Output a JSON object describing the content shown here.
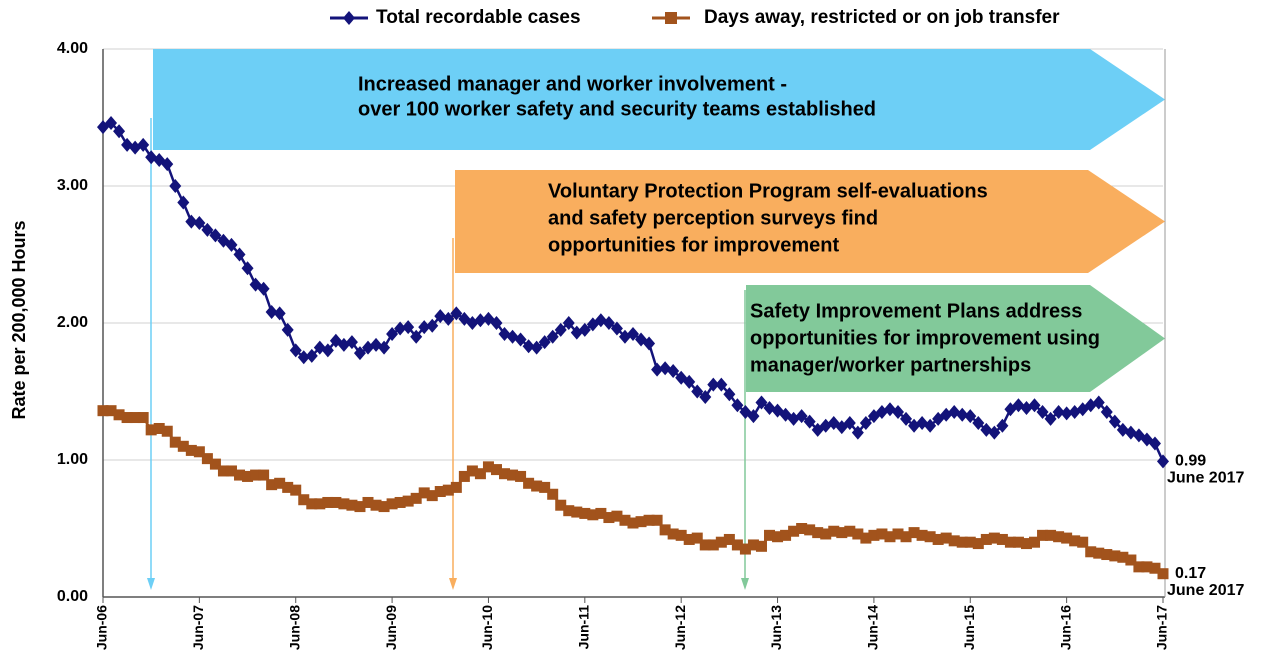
{
  "chart_data": {
    "type": "line",
    "y_label": "Rate per 200,000 Hours",
    "categories": [
      "Jun-06",
      null,
      null,
      null,
      null,
      null,
      null,
      null,
      null,
      null,
      null,
      null,
      "Jun-07",
      null,
      null,
      null,
      null,
      null,
      null,
      null,
      null,
      null,
      null,
      null,
      "Jun-08",
      null,
      null,
      null,
      null,
      null,
      null,
      null,
      null,
      null,
      null,
      null,
      "Jun-09",
      null,
      null,
      null,
      null,
      null,
      null,
      null,
      null,
      null,
      null,
      null,
      "Jun-10",
      null,
      null,
      null,
      null,
      null,
      null,
      null,
      null,
      null,
      null,
      null,
      "Jun-11",
      null,
      null,
      null,
      null,
      null,
      null,
      null,
      null,
      null,
      null,
      null,
      "Jun-12",
      null,
      null,
      null,
      null,
      null,
      null,
      null,
      null,
      null,
      null,
      null,
      "Jun-13",
      null,
      null,
      null,
      null,
      null,
      null,
      null,
      null,
      null,
      null,
      null,
      "Jun-14",
      null,
      null,
      null,
      null,
      null,
      null,
      null,
      null,
      null,
      null,
      null,
      "Jun-15",
      null,
      null,
      null,
      null,
      null,
      null,
      null,
      null,
      null,
      null,
      null,
      "Jun-16",
      null,
      null,
      null,
      null,
      null,
      null,
      null,
      null,
      null,
      null,
      null,
      "Jun-17"
    ],
    "series": [
      {
        "name": "Total recordable cases",
        "color": "#13137a",
        "marker": "diamond",
        "end_label": "June 2017",
        "values": [
          3.43,
          3.46,
          3.4,
          3.3,
          3.28,
          3.3,
          3.21,
          3.19,
          3.16,
          3.0,
          2.88,
          2.74,
          2.73,
          2.68,
          2.64,
          2.6,
          2.57,
          2.5,
          2.4,
          2.28,
          2.25,
          2.08,
          2.07,
          1.95,
          1.8,
          1.75,
          1.76,
          1.82,
          1.8,
          1.87,
          1.84,
          1.86,
          1.78,
          1.82,
          1.84,
          1.82,
          1.92,
          1.96,
          1.97,
          1.9,
          1.97,
          1.98,
          2.05,
          2.03,
          2.07,
          2.03,
          2.0,
          2.02,
          2.03,
          2.0,
          1.92,
          1.9,
          1.88,
          1.83,
          1.82,
          1.86,
          1.9,
          1.95,
          2.0,
          1.93,
          1.95,
          1.99,
          2.02,
          2.0,
          1.96,
          1.9,
          1.92,
          1.88,
          1.85,
          1.66,
          1.67,
          1.65,
          1.6,
          1.57,
          1.5,
          1.46,
          1.55,
          1.55,
          1.48,
          1.4,
          1.35,
          1.32,
          1.42,
          1.38,
          1.36,
          1.33,
          1.3,
          1.32,
          1.28,
          1.22,
          1.25,
          1.27,
          1.24,
          1.27,
          1.2,
          1.27,
          1.32,
          1.35,
          1.37,
          1.35,
          1.3,
          1.25,
          1.27,
          1.25,
          1.3,
          1.33,
          1.35,
          1.33,
          1.32,
          1.27,
          1.22,
          1.2,
          1.25,
          1.37,
          1.4,
          1.38,
          1.4,
          1.35,
          1.3,
          1.35,
          1.34,
          1.35,
          1.37,
          1.4,
          1.42,
          1.35,
          1.28,
          1.22,
          1.2,
          1.18,
          1.15,
          1.12,
          0.99
        ]
      },
      {
        "name": "Days away, restricted or on job transfer",
        "color": "#a2531c",
        "marker": "square",
        "end_label": "June 2017",
        "values": [
          1.36,
          1.36,
          1.33,
          1.31,
          1.31,
          1.31,
          1.22,
          1.23,
          1.21,
          1.13,
          1.1,
          1.07,
          1.06,
          1.01,
          0.97,
          0.92,
          0.92,
          0.89,
          0.88,
          0.89,
          0.89,
          0.82,
          0.83,
          0.8,
          0.78,
          0.71,
          0.68,
          0.68,
          0.69,
          0.69,
          0.68,
          0.67,
          0.66,
          0.69,
          0.67,
          0.66,
          0.68,
          0.69,
          0.7,
          0.72,
          0.76,
          0.74,
          0.77,
          0.78,
          0.8,
          0.88,
          0.92,
          0.9,
          0.95,
          0.93,
          0.9,
          0.89,
          0.88,
          0.83,
          0.81,
          0.8,
          0.75,
          0.67,
          0.63,
          0.62,
          0.61,
          0.6,
          0.61,
          0.58,
          0.59,
          0.56,
          0.54,
          0.55,
          0.56,
          0.56,
          0.49,
          0.46,
          0.45,
          0.42,
          0.43,
          0.38,
          0.38,
          0.4,
          0.42,
          0.38,
          0.35,
          0.38,
          0.37,
          0.45,
          0.44,
          0.45,
          0.48,
          0.5,
          0.49,
          0.47,
          0.46,
          0.48,
          0.47,
          0.48,
          0.46,
          0.43,
          0.45,
          0.46,
          0.44,
          0.46,
          0.44,
          0.47,
          0.45,
          0.44,
          0.42,
          0.43,
          0.41,
          0.4,
          0.4,
          0.39,
          0.42,
          0.43,
          0.42,
          0.4,
          0.4,
          0.39,
          0.4,
          0.45,
          0.45,
          0.44,
          0.43,
          0.41,
          0.4,
          0.33,
          0.32,
          0.31,
          0.3,
          0.29,
          0.27,
          0.22,
          0.22,
          0.21,
          0.17
        ]
      }
    ],
    "ylim": [
      0,
      4
    ],
    "yticks": [
      {
        "value": 0,
        "label": "0.00"
      },
      {
        "value": 1,
        "label": "1.00"
      },
      {
        "value": 2,
        "label": "2.00"
      },
      {
        "value": 3,
        "label": "3.00"
      },
      {
        "value": 4,
        "label": "4.00"
      }
    ],
    "grid": true,
    "legend": "top",
    "annotations": [
      {
        "lines": [
          "Increased manager and worker involvement -",
          "over 100 worker safety and security teams established"
        ],
        "color": "#6dcff6"
      },
      {
        "lines": [
          "Voluntary Protection Program self-evaluations",
          "and safety perception surveys find",
          "opportunities for improvement"
        ],
        "color": "#f9ae5e"
      },
      {
        "lines": [
          "Safety Improvement Plans address",
          "opportunities for improvement using",
          "manager/worker partnerships"
        ],
        "color": "#82c99a"
      }
    ]
  }
}
